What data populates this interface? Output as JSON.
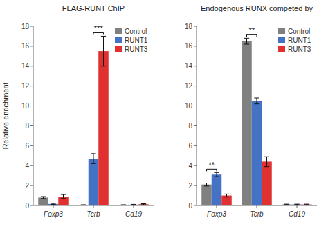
{
  "chart_data": [
    {
      "type": "bar",
      "title": "FLAG-RUNT ChIP",
      "ylabel": "Relative enrichment",
      "categories": [
        "Foxp3",
        "Tcrb",
        "Cd19"
      ],
      "series": [
        {
          "name": "Control",
          "color": "#808080",
          "values": [
            0.8,
            0.05,
            0.05
          ],
          "errors": [
            0.1,
            0.02,
            0.02
          ]
        },
        {
          "name": "RUNT1",
          "color": "#4472c4",
          "values": [
            0.15,
            4.7,
            0.08
          ],
          "errors": [
            0.05,
            0.5,
            0.03
          ]
        },
        {
          "name": "RUNT3",
          "color": "#e03030",
          "values": [
            0.9,
            15.5,
            0.12
          ],
          "errors": [
            0.2,
            1.5,
            0.05
          ]
        }
      ],
      "ylim": [
        0,
        18
      ],
      "yticks": [
        0,
        2,
        4,
        6,
        8,
        10,
        12,
        14,
        16,
        18
      ],
      "grid": false,
      "legend": "upper right",
      "annotations": [
        {
          "text": "***",
          "category": "Tcrb",
          "between": [
            "RUNT1",
            "RUNT3"
          ]
        }
      ]
    },
    {
      "type": "bar",
      "title": "Endogenous RUNX competed by",
      "categories": [
        "Foxp3",
        "Tcrb",
        "Cd19"
      ],
      "series": [
        {
          "name": "Control",
          "color": "#808080",
          "values": [
            2.1,
            16.5,
            0.1
          ],
          "errors": [
            0.15,
            0.3,
            0.03
          ]
        },
        {
          "name": "RUNT1",
          "color": "#4472c4",
          "values": [
            3.1,
            10.5,
            0.1
          ],
          "errors": [
            0.2,
            0.3,
            0.03
          ]
        },
        {
          "name": "RUNT3",
          "color": "#e03030",
          "values": [
            1.0,
            4.4,
            0.1
          ],
          "errors": [
            0.15,
            0.5,
            0.03
          ]
        }
      ],
      "ylim": [
        0,
        18
      ],
      "yticks": [
        0,
        2,
        4,
        6,
        8,
        10,
        12,
        14,
        16,
        18
      ],
      "grid": false,
      "legend": "upper right",
      "annotations": [
        {
          "text": "**",
          "category": "Foxp3",
          "between": [
            "Control",
            "RUNT1"
          ]
        },
        {
          "text": "**",
          "category": "Tcrb",
          "between": [
            "Control",
            "RUNT1"
          ]
        }
      ]
    }
  ]
}
